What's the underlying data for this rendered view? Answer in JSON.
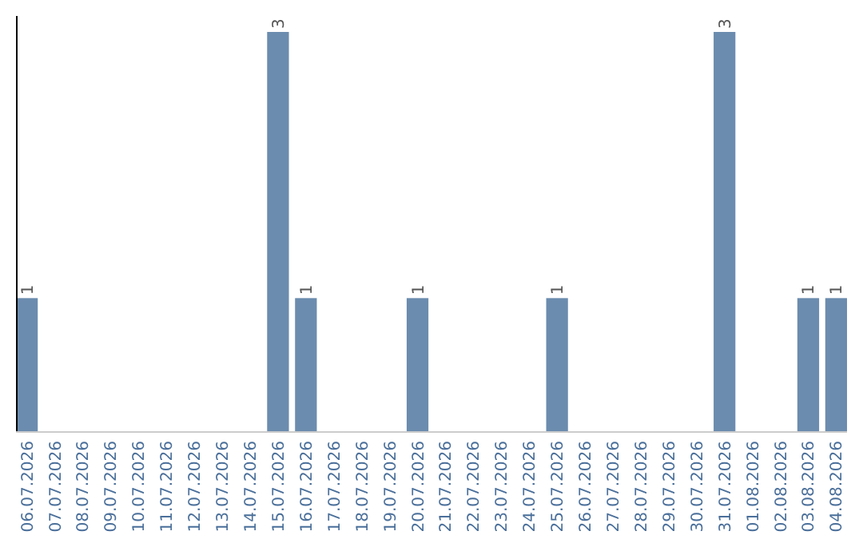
{
  "chart_data": {
    "type": "bar",
    "categories": [
      "06.07.2026",
      "07.07.2026",
      "08.07.2026",
      "09.07.2026",
      "10.07.2026",
      "11.07.2026",
      "12.07.2026",
      "13.07.2026",
      "14.07.2026",
      "15.07.2026",
      "16.07.2026",
      "17.07.2026",
      "18.07.2026",
      "19.07.2026",
      "20.07.2026",
      "21.07.2026",
      "22.07.2026",
      "23.07.2026",
      "24.07.2026",
      "25.07.2026",
      "26.07.2026",
      "27.07.2026",
      "28.07.2026",
      "29.07.2026",
      "30.07.2026",
      "31.07.2026",
      "01.08.2026",
      "02.08.2026",
      "03.08.2026",
      "04.08.2026"
    ],
    "values": [
      1,
      0,
      0,
      0,
      0,
      0,
      0,
      0,
      0,
      3,
      1,
      0,
      0,
      0,
      1,
      0,
      0,
      0,
      0,
      1,
      0,
      0,
      0,
      0,
      0,
      3,
      0,
      0,
      1,
      1
    ],
    "value_labels": [
      "1",
      null,
      null,
      null,
      null,
      null,
      null,
      null,
      null,
      "3",
      "1",
      null,
      null,
      null,
      "1",
      null,
      null,
      null,
      null,
      "1",
      null,
      null,
      null,
      null,
      null,
      "3",
      null,
      null,
      "1",
      "1"
    ],
    "color": "#6b8cae",
    "relative": false
  }
}
